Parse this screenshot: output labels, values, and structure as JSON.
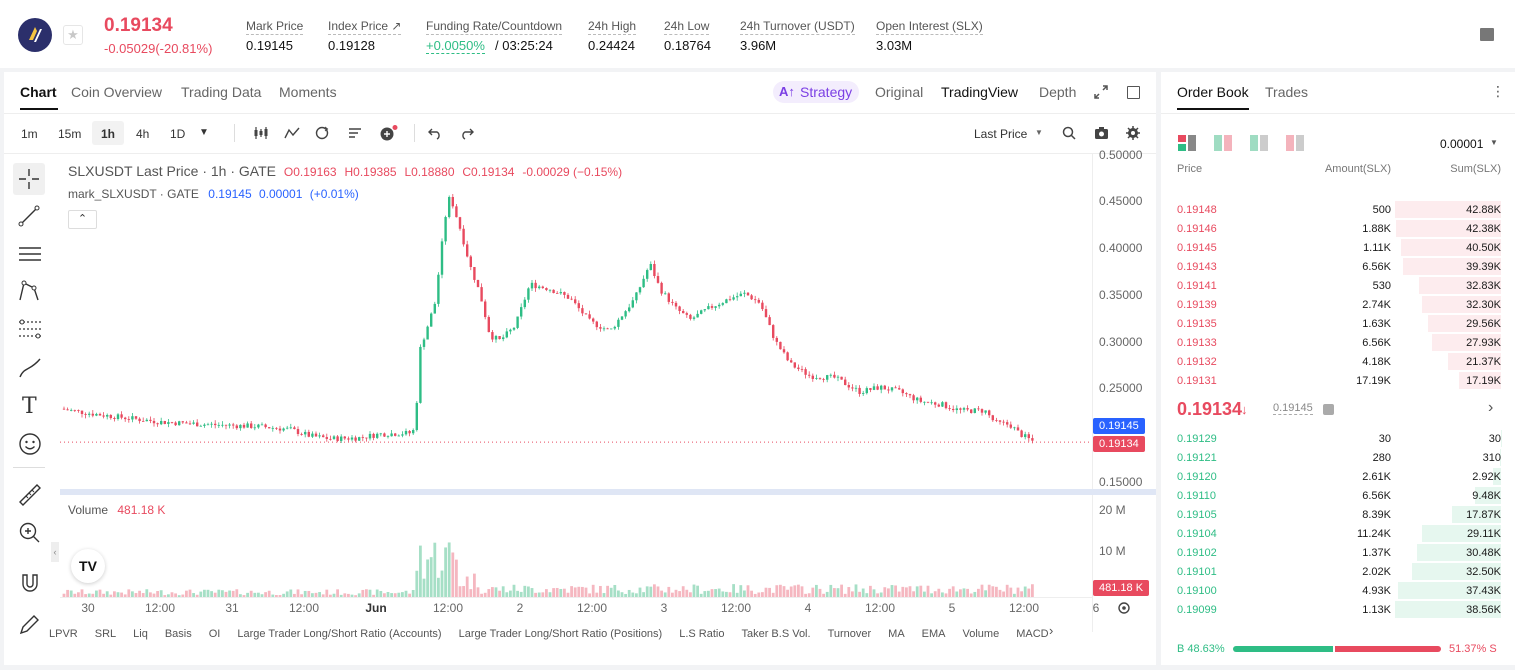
{
  "ticker": {
    "last_price": "0.19134",
    "change": "-0.05029(-20.81%)",
    "stats": [
      {
        "label": "Mark Price",
        "value": "0.19145"
      },
      {
        "label": "Index Price ↗",
        "value": "0.19128"
      },
      {
        "label": "Funding Rate/Countdown",
        "value": "+0.0050%",
        "value2": "/ 03:25:24"
      },
      {
        "label": "24h High",
        "value": "0.24424"
      },
      {
        "label": "24h Low",
        "value": "0.18764"
      },
      {
        "label": "24h Turnover (USDT)",
        "value": "3.96M"
      },
      {
        "label": "Open Interest (SLX)",
        "value": "3.03M"
      }
    ]
  },
  "chart_tabs": [
    "Chart",
    "Coin Overview",
    "Trading Data",
    "Moments"
  ],
  "chart_modes": {
    "strategy": "Strategy",
    "original": "Original",
    "tradingview": "TradingView",
    "depth": "Depth"
  },
  "intervals": [
    "1m",
    "15m",
    "1h",
    "4h",
    "1D"
  ],
  "price_type": "Last Price",
  "legend": {
    "symbol": "SLXUSDT Last Price · 1h · GATE",
    "open": "O0.19163",
    "high": "H0.19385",
    "low": "L0.18880",
    "close": "C0.19134",
    "delta": "-0.00029 (−0.15%)",
    "mark_label": "mark_SLXUSDT · GATE",
    "mark_value": "0.19145",
    "mark_delta": "0.00001",
    "mark_pct": "(+0.01%)"
  },
  "price_axis": [
    "0.50000",
    "0.45000",
    "0.40000",
    "0.35000",
    "0.30000",
    "0.25000",
    "0.15000"
  ],
  "mark_tag": "0.19145",
  "last_tag": "0.19134",
  "volume": {
    "label": "Volume",
    "value": "481.18 K",
    "axis": [
      "20 M",
      "10 M"
    ],
    "tag": "481.18 K"
  },
  "time_axis": [
    "30",
    "12:00",
    "31",
    "12:00",
    "Jun",
    "12:00",
    "2",
    "12:00",
    "3",
    "12:00",
    "4",
    "12:00",
    "5",
    "12:00",
    "6"
  ],
  "indicators": [
    "LPVR",
    "SRL",
    "Liq",
    "Basis",
    "OI",
    "Large Trader Long/Short Ratio (Accounts)",
    "Large Trader Long/Short Ratio (Positions)",
    "L.S Ratio",
    "Taker B.S Vol.",
    "Turnover",
    "MA",
    "EMA",
    "Volume",
    "MACD"
  ],
  "orderbook": {
    "tabs": [
      "Order Book",
      "Trades"
    ],
    "precision": "0.00001",
    "headers": [
      "Price",
      "Amount(SLX)",
      "Sum(SLX)"
    ],
    "asks": [
      {
        "price": "0.19148",
        "amount": "500",
        "sum": "42.88K",
        "depth": 1.0
      },
      {
        "price": "0.19146",
        "amount": "1.88K",
        "sum": "42.38K",
        "depth": 0.99
      },
      {
        "price": "0.19145",
        "amount": "1.11K",
        "sum": "40.50K",
        "depth": 0.94
      },
      {
        "price": "0.19143",
        "amount": "6.56K",
        "sum": "39.39K",
        "depth": 0.92
      },
      {
        "price": "0.19141",
        "amount": "530",
        "sum": "32.83K",
        "depth": 0.77
      },
      {
        "price": "0.19139",
        "amount": "2.74K",
        "sum": "32.30K",
        "depth": 0.75
      },
      {
        "price": "0.19135",
        "amount": "1.63K",
        "sum": "29.56K",
        "depth": 0.69
      },
      {
        "price": "0.19133",
        "amount": "6.56K",
        "sum": "27.93K",
        "depth": 0.65
      },
      {
        "price": "0.19132",
        "amount": "4.18K",
        "sum": "21.37K",
        "depth": 0.5
      },
      {
        "price": "0.19131",
        "amount": "17.19K",
        "sum": "17.19K",
        "depth": 0.4
      }
    ],
    "mid_price": "0.19134",
    "mid_mark": "0.19145",
    "bids": [
      {
        "price": "0.19129",
        "amount": "30",
        "sum": "30",
        "depth": 0.001
      },
      {
        "price": "0.19121",
        "amount": "280",
        "sum": "310",
        "depth": 0.008
      },
      {
        "price": "0.19120",
        "amount": "2.61K",
        "sum": "2.92K",
        "depth": 0.08
      },
      {
        "price": "0.19110",
        "amount": "6.56K",
        "sum": "9.48K",
        "depth": 0.25
      },
      {
        "price": "0.19105",
        "amount": "8.39K",
        "sum": "17.87K",
        "depth": 0.46
      },
      {
        "price": "0.19104",
        "amount": "11.24K",
        "sum": "29.11K",
        "depth": 0.75
      },
      {
        "price": "0.19102",
        "amount": "1.37K",
        "sum": "30.48K",
        "depth": 0.79
      },
      {
        "price": "0.19101",
        "amount": "2.02K",
        "sum": "32.50K",
        "depth": 0.84
      },
      {
        "price": "0.19100",
        "amount": "4.93K",
        "sum": "37.43K",
        "depth": 0.97
      },
      {
        "price": "0.19099",
        "amount": "1.13K",
        "sum": "38.56K",
        "depth": 1.0
      }
    ],
    "buy_pct": "B 48.63%",
    "sell_pct": "51.37% S",
    "buy_ratio": 0.4863
  },
  "colors": {
    "up": "#2ebd85",
    "down": "#e84a5f",
    "accent": "#7b3fe4"
  }
}
